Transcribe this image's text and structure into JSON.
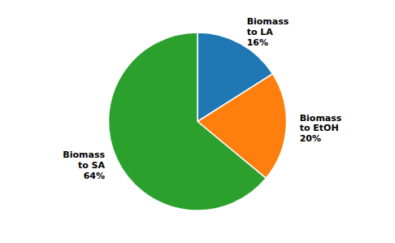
{
  "chart_data": {
    "type": "pie",
    "categories": [
      "Biomass\nto LA\n16%",
      "Biomass\nto EtOH\n20%",
      "Biomass\nto SA\n64%"
    ],
    "values": [
      16,
      20,
      64
    ]
  }
}
